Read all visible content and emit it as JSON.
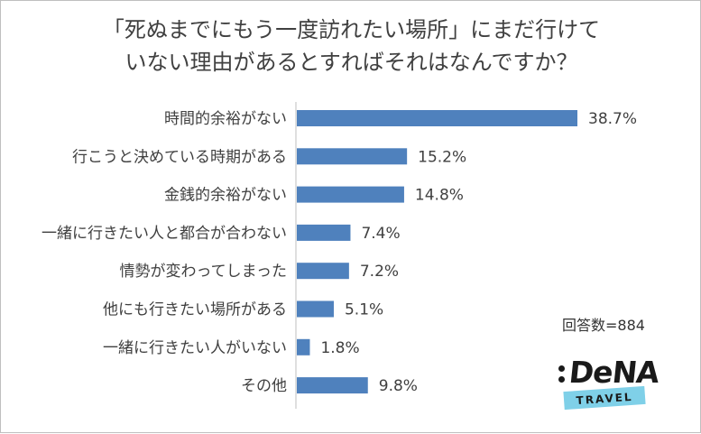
{
  "title_lines": [
    "「死ぬまでにもう一度訪れたい場所」にまだ行けて",
    "いない理由があるとすればそれはなんですか？"
  ],
  "sample_size": "回答数=884",
  "logo": {
    "word": "DeNA",
    "band": "TRAVEL"
  },
  "colors": {
    "bar": "#4f81bd",
    "logo_band": "#7fd0e8"
  },
  "chart_data": {
    "type": "bar",
    "orientation": "horizontal",
    "categories": [
      "時間的余裕がない",
      "行こうと決めている時期がある",
      "金銭的余裕がない",
      "一緒に行きたい人と都合が合わない",
      "情勢が変わってしまった",
      "他にも行きたい場所がある",
      "一緒に行きたい人がいない",
      "その他"
    ],
    "values": [
      38.7,
      15.2,
      14.8,
      7.4,
      7.2,
      5.1,
      1.8,
      9.8
    ],
    "value_labels": [
      "38.7%",
      "15.2%",
      "14.8%",
      "7.4%",
      "7.2%",
      "5.1%",
      "1.8%",
      "9.8%"
    ],
    "unit": "%",
    "xlim": [
      0,
      38.7
    ],
    "grid": false,
    "legend": "none"
  }
}
